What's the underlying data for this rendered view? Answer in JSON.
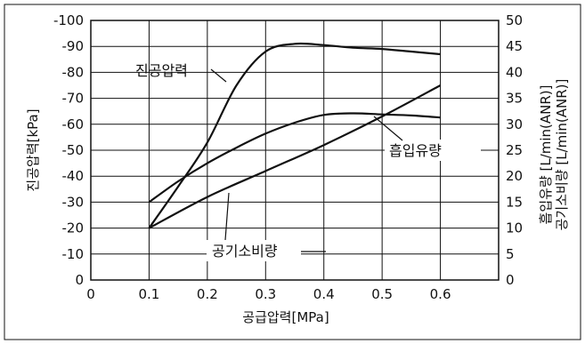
{
  "chart_data": {
    "type": "line",
    "xlabel": "공급압력[MPa]",
    "ylabel_left": "진공압력[kPa]",
    "ylabel_right_1": "흡입유량 [L/min(ANR)]",
    "ylabel_right_2": "공기소비량 [L/min(ANR)]",
    "x_ticks": [
      "0",
      "0.1",
      "0.2",
      "0.3",
      "0.4",
      "0.5",
      "0.6"
    ],
    "y_left_ticks": [
      "-100",
      "-90",
      "-80",
      "-70",
      "-60",
      "-50",
      "-40",
      "-30",
      "-20",
      "-10",
      "0"
    ],
    "y_right_ticks": [
      "50",
      "45",
      "40",
      "35",
      "30",
      "25",
      "20",
      "15",
      "10",
      "5",
      "0"
    ],
    "xlim": [
      0,
      0.7
    ],
    "ylim_left": [
      0,
      -100
    ],
    "ylim_right": [
      0,
      50
    ],
    "grid": true,
    "series": [
      {
        "name": "진공압력",
        "axis": "left",
        "x": [
          0.1,
          0.15,
          0.2,
          0.25,
          0.3,
          0.35,
          0.4,
          0.45,
          0.5,
          0.55,
          0.6
        ],
        "y": [
          -20,
          -36,
          -53,
          -75,
          -88,
          -91,
          -90.5,
          -89.5,
          -89,
          -88,
          -87
        ]
      },
      {
        "name": "흡입유량",
        "axis": "right",
        "x": [
          0.1,
          0.15,
          0.2,
          0.25,
          0.3,
          0.35,
          0.4,
          0.45,
          0.5,
          0.55,
          0.6
        ],
        "y": [
          15,
          19,
          22.5,
          25.5,
          28.2,
          30.3,
          31.8,
          32.1,
          31.9,
          31.7,
          31.3
        ]
      },
      {
        "name": "공기소비량",
        "axis": "right",
        "x": [
          0.1,
          0.2,
          0.3,
          0.4,
          0.5,
          0.6
        ],
        "y": [
          10,
          16,
          21,
          26,
          31.5,
          37.5
        ]
      }
    ],
    "callouts": {
      "vacuum": "진공압력",
      "suction": "흡입유량",
      "air": "공기소비량"
    }
  },
  "colors": {
    "line": "#111111",
    "grid": "#111111",
    "background": "#ffffff"
  }
}
